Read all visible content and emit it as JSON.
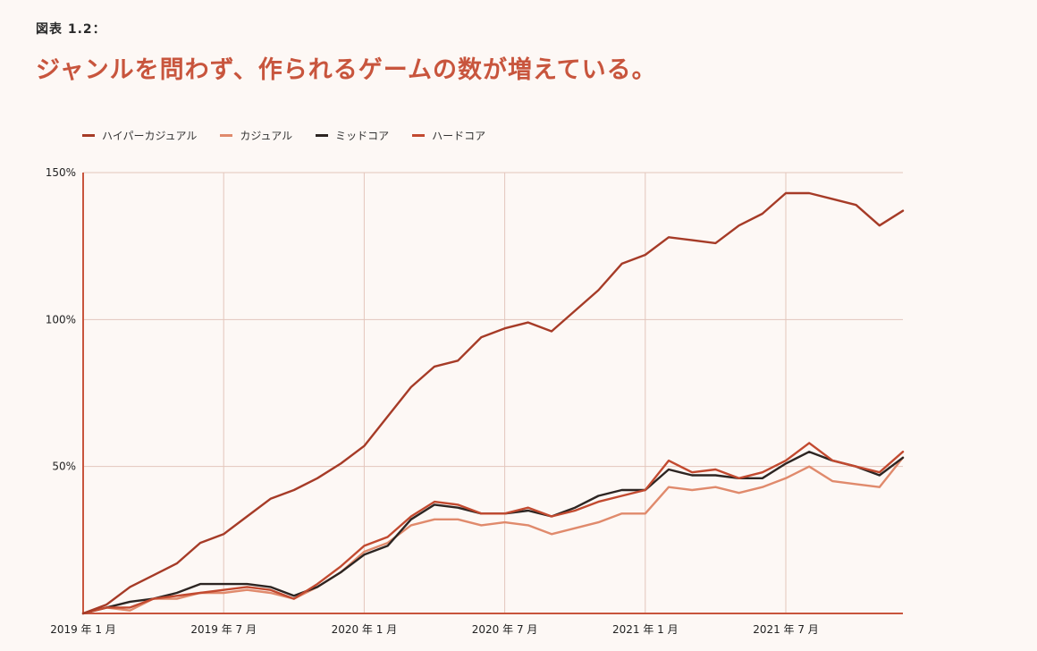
{
  "figure": {
    "label": "図表 1.2：",
    "title": "ジャンルを問わず、作られるゲームの数が増えている。"
  },
  "chart_data": {
    "type": "line",
    "title": "ジャンルを問わず、作られるゲームの数が増えている。",
    "xlabel": "",
    "ylabel": "",
    "ylim": [
      0,
      150
    ],
    "y_ticks": [
      50,
      100,
      150
    ],
    "y_tick_labels": [
      "50%",
      "100%",
      "150%"
    ],
    "x_tick_labels": [
      "2019 年 1 月",
      "2019 年 7 月",
      "2020 年 1 月",
      "2020 年 7 月",
      "2021 年 1 月",
      "2021 年 7 月"
    ],
    "x_tick_index": [
      0,
      6,
      12,
      18,
      24,
      30
    ],
    "x": [
      "2019-01",
      "2019-02",
      "2019-03",
      "2019-04",
      "2019-05",
      "2019-06",
      "2019-07",
      "2019-08",
      "2019-09",
      "2019-10",
      "2019-11",
      "2019-12",
      "2020-01",
      "2020-02",
      "2020-03",
      "2020-04",
      "2020-05",
      "2020-06",
      "2020-07",
      "2020-08",
      "2020-09",
      "2020-10",
      "2020-11",
      "2020-12",
      "2021-01",
      "2021-02",
      "2021-03",
      "2021-04",
      "2021-05",
      "2021-06",
      "2021-07",
      "2021-08",
      "2021-09",
      "2021-10",
      "2021-11",
      "2021-12"
    ],
    "grid": true,
    "legend_position": "top-left",
    "series": [
      {
        "name": "ハイパーカジュアル",
        "color": "#a63b27",
        "values": [
          0,
          3,
          9,
          13,
          17,
          24,
          27,
          33,
          39,
          42,
          46,
          51,
          57,
          67,
          77,
          84,
          86,
          94,
          97,
          99,
          96,
          103,
          110,
          119,
          122,
          128,
          127,
          126,
          132,
          136,
          143,
          143,
          141,
          139,
          132,
          137
        ]
      },
      {
        "name": "カジュアル",
        "color": "#e08a6c",
        "values": [
          0,
          2,
          1,
          5,
          5,
          7,
          7,
          8,
          7,
          5,
          9,
          14,
          21,
          24,
          30,
          32,
          32,
          30,
          31,
          30,
          27,
          29,
          31,
          34,
          34,
          43,
          42,
          43,
          41,
          43,
          46,
          50,
          45,
          44,
          43,
          53
        ]
      },
      {
        "name": "ミッドコア",
        "color": "#2d2522",
        "values": [
          0,
          2,
          4,
          5,
          7,
          10,
          10,
          10,
          9,
          6,
          9,
          14,
          20,
          23,
          32,
          37,
          36,
          34,
          34,
          35,
          33,
          36,
          40,
          42,
          42,
          49,
          47,
          47,
          46,
          46,
          51,
          55,
          52,
          50,
          47,
          53
        ]
      },
      {
        "name": "ハードコア",
        "color": "#c24a30",
        "values": [
          0,
          2,
          2,
          5,
          6,
          7,
          8,
          9,
          8,
          5,
          10,
          16,
          23,
          26,
          33,
          38,
          37,
          34,
          34,
          36,
          33,
          35,
          38,
          40,
          42,
          52,
          48,
          49,
          46,
          48,
          52,
          58,
          52,
          50,
          48,
          55
        ]
      }
    ]
  }
}
